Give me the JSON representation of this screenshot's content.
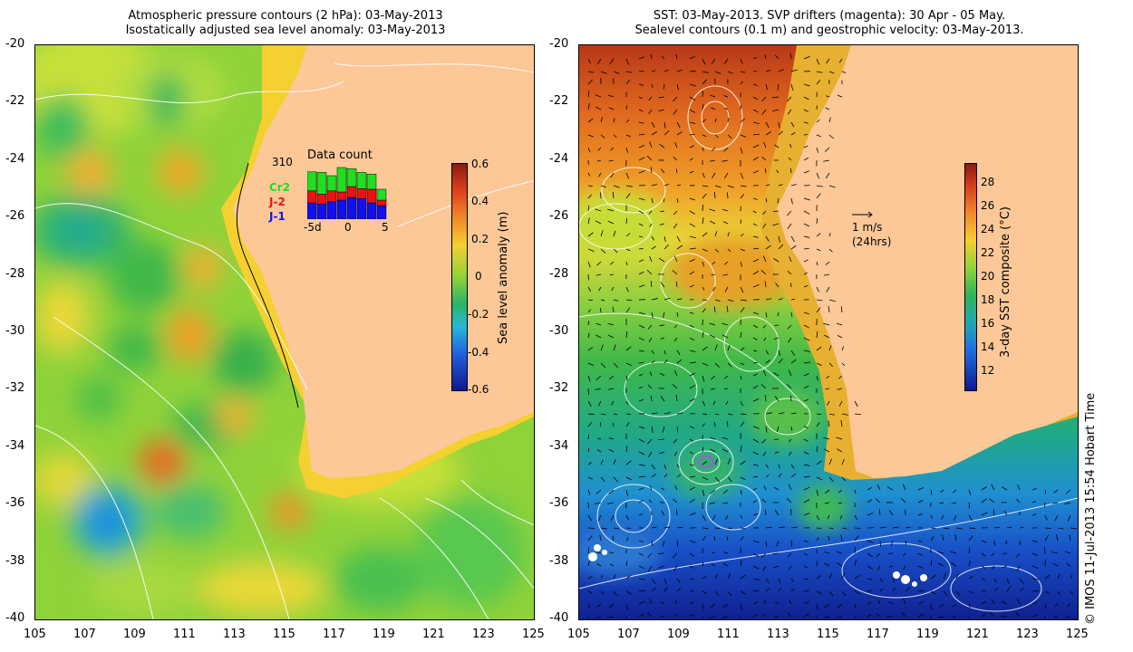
{
  "left": {
    "title_line1": "Atmospheric pressure contours (2 hPa): 03-May-2013",
    "title_line2": "Isostatically adjusted sea level anomaly: 03-May-2013",
    "colorbar": {
      "label": "Sea level anomaly (m)",
      "ticks": [
        "0.6",
        "0.4",
        "0.2",
        "0",
        "-0.2",
        "-0.4",
        "-0.6"
      ]
    },
    "inset": {
      "title": "Data count",
      "count": "310",
      "legend": [
        {
          "name": "Cr2",
          "color": "#22dd22"
        },
        {
          "name": "J-2",
          "color": "#ee1111"
        },
        {
          "name": "J-1",
          "color": "#1111ee"
        }
      ],
      "xticks": [
        "-5d",
        "0",
        "5"
      ],
      "bars": [
        {
          "j1": 0.3,
          "j2": 0.22,
          "cr2": 0.35
        },
        {
          "j1": 0.28,
          "j2": 0.18,
          "cr2": 0.4
        },
        {
          "j1": 0.32,
          "j2": 0.2,
          "cr2": 0.28
        },
        {
          "j1": 0.35,
          "j2": 0.15,
          "cr2": 0.45
        },
        {
          "j1": 0.4,
          "j2": 0.2,
          "cr2": 0.33
        },
        {
          "j1": 0.38,
          "j2": 0.18,
          "cr2": 0.3
        },
        {
          "j1": 0.3,
          "j2": 0.25,
          "cr2": 0.28
        },
        {
          "j1": 0.25,
          "j2": 0.1,
          "cr2": 0.2
        }
      ]
    }
  },
  "right": {
    "title_line1": "SST: 03-May-2013. SVP drifters (magenta): 30 Apr - 05 May.",
    "title_line2": "Sealevel contours (0.1 m) and geostrophic velocity: 03-May-2013.",
    "scale_label": "1 m/s",
    "scale_sub": "(24hrs)",
    "colorbar": {
      "label": "3-day SST composite (°C)",
      "ticks": [
        "28",
        "26",
        "24",
        "22",
        "20",
        "18",
        "16",
        "14",
        "12"
      ]
    }
  },
  "axes": {
    "lat_ticks": [
      "-20",
      "-22",
      "-24",
      "-26",
      "-28",
      "-30",
      "-32",
      "-34",
      "-36",
      "-38",
      "-40"
    ],
    "lon_ticks": [
      "105",
      "107",
      "109",
      "111",
      "113",
      "115",
      "117",
      "119",
      "121",
      "123",
      "125"
    ]
  },
  "credit": "© IMOS 11-Jul-2013 15:54 Hobart Time",
  "colors": {
    "land": "#fcc898"
  }
}
